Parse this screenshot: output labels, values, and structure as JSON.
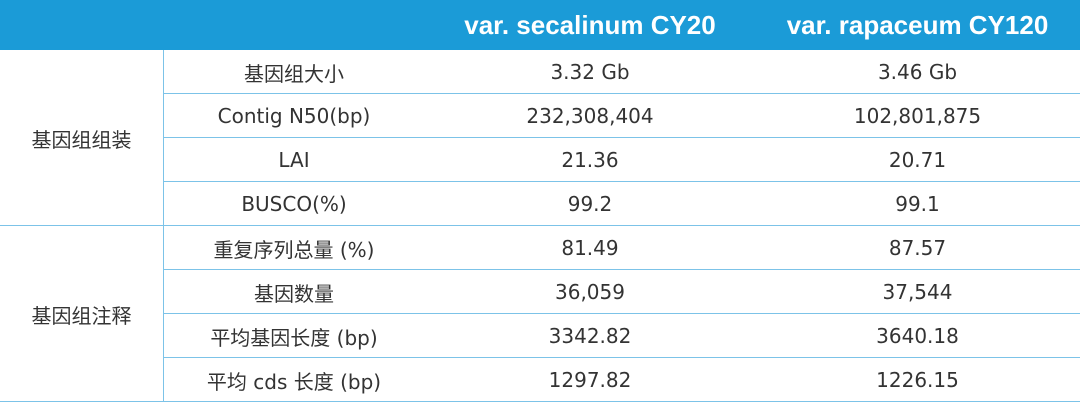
{
  "table": {
    "columns": [
      "var. secalinum CY20",
      "var. rapaceum CY120"
    ],
    "groups": [
      {
        "label": "基因组组装",
        "rows": [
          [
            "基因组大小",
            "3.32 Gb",
            "3.46 Gb"
          ],
          [
            "Contig N50(bp)",
            "232,308,404",
            "102,801,875"
          ],
          [
            "LAI",
            "21.36",
            "20.71"
          ],
          [
            "BUSCO(%)",
            "99.2",
            "99.1"
          ]
        ]
      },
      {
        "label": "基因组注释",
        "rows": [
          [
            "重复序列总量 (%)",
            "81.49",
            "87.57"
          ],
          [
            "基因数量",
            "36,059",
            "37,544"
          ],
          [
            "平均基因长度 (bp)",
            "3342.82",
            "3640.18"
          ],
          [
            "平均 cds 长度 (bp)",
            "1297.82",
            "1226.15"
          ]
        ]
      }
    ]
  }
}
